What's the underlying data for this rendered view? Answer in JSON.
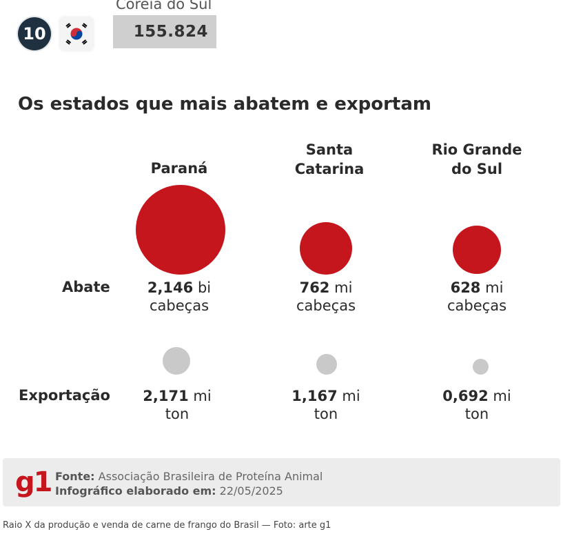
{
  "ranking": {
    "rank": "10",
    "country": "Coreia do Sul",
    "value": "155.824",
    "flag_icon": "south-korea-flag-icon"
  },
  "section_title": "Os estados que mais abatem e exportam",
  "row_labels": {
    "abate": "Abate",
    "exportacao": "Exportação"
  },
  "states": [
    {
      "name": "Paraná",
      "abate_number": "2,146",
      "abate_unit": "bi",
      "abate_unit2": "cabeças",
      "export_number": "2,171",
      "export_unit": "mi",
      "export_unit2": "ton"
    },
    {
      "name": "Santa\nCatarina",
      "abate_number": "762",
      "abate_unit": "mi",
      "abate_unit2": "cabeças",
      "export_number": "1,167",
      "export_unit": "mi",
      "export_unit2": "ton"
    },
    {
      "name": "Rio Grande\ndo Sul",
      "abate_number": "628",
      "abate_unit": "mi",
      "abate_unit2": "cabeças",
      "export_number": "0,692",
      "export_unit": "mi",
      "export_unit2": "ton"
    }
  ],
  "colors": {
    "abate": "#c4161c",
    "exportacao": "#c9c9c9",
    "badge": "#1f3140",
    "brand": "#c4161c"
  },
  "footer": {
    "logo": "g1",
    "source_label": "Fonte:",
    "source_value": "Associação Brasileira de Proteína Animal",
    "infographic_label": "Infográfico elaborado em:",
    "infographic_date": "22/05/2025"
  },
  "caption": "Raio X da produção e venda de carne de frango do Brasil — Foto: arte g1"
}
